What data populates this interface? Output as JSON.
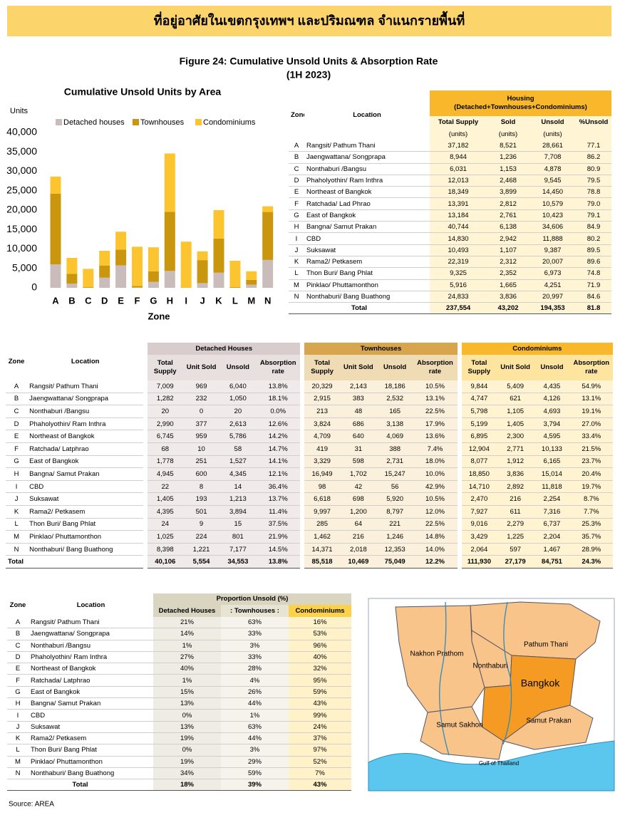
{
  "header": {
    "title": "ที่อยู่อาศัยในเขตกรุงเทพฯ และปริมณฑล จำแนกรายพื้นที่"
  },
  "figure": {
    "title": "Figure 24: Cumulative Unsold Units & Absorption Rate",
    "subtitle": "(1H 2023)"
  },
  "chart_data": {
    "type": "bar",
    "stacked": true,
    "title": "Cumulative Unsold Units by Area",
    "y_label": "Units",
    "x_label": "Zone",
    "categories": [
      "A",
      "B",
      "C",
      "D",
      "E",
      "F",
      "G",
      "H",
      "I",
      "J",
      "K",
      "L",
      "M",
      "N"
    ],
    "series": [
      {
        "name": "Detached houses",
        "color": "#cbbcbc",
        "values": [
          6040,
          1050,
          20,
          2613,
          5786,
          58,
          1527,
          4345,
          14,
          1213,
          3894,
          15,
          801,
          7177
        ]
      },
      {
        "name": "Townhouses",
        "color": "#c9960e",
        "values": [
          18186,
          2532,
          165,
          3138,
          4069,
          388,
          2731,
          15247,
          56,
          5920,
          8797,
          221,
          1246,
          12353
        ]
      },
      {
        "name": "Condominiums",
        "color": "#fcc42e",
        "values": [
          4435,
          4126,
          4693,
          3794,
          4595,
          10133,
          6165,
          15014,
          11818,
          2254,
          7316,
          6737,
          2204,
          1467
        ]
      }
    ],
    "ylim": [
      0,
      40000
    ],
    "yticks": [
      0,
      {
        "value": 5000,
        "label": "5,000"
      },
      {
        "value": 10000,
        "label": "10,000"
      },
      {
        "value": 15000,
        "label": "15,000"
      },
      {
        "value": 20000,
        "label": "20,000"
      },
      {
        "value": 25000,
        "label": "25,000"
      },
      {
        "value": 30000,
        "label": "30,000"
      },
      {
        "value": 35000,
        "label": "35,000"
      },
      {
        "value": 40000,
        "label": "40,000"
      }
    ],
    "grid": false,
    "legend": "top"
  },
  "housing_table": {
    "headers": {
      "zone": "Zone",
      "location": "Location",
      "group": "Housing",
      "group_note": "(Detached+Townhouses+Condominiums)",
      "columns": [
        "Total Supply",
        "Sold",
        "Unsold",
        "%Unsold"
      ],
      "units": [
        "(units)",
        "(units)",
        "(units)"
      ]
    },
    "rows": [
      [
        "A",
        "Rangsit/ Pathum Thani",
        "37,182",
        "8,521",
        "28,661",
        "77.1"
      ],
      [
        "B",
        "Jaengwattana/ Songprapa",
        "8,944",
        "1,236",
        "7,708",
        "86.2"
      ],
      [
        "C",
        "Nonthaburi /Bangsu",
        "6,031",
        "1,153",
        "4,878",
        "80.9"
      ],
      [
        "D",
        "Phaholyothin/ Ram Inthra",
        "12,013",
        "2,468",
        "9,545",
        "79.5"
      ],
      [
        "E",
        "Northeast of Bangkok",
        "18,349",
        "3,899",
        "14,450",
        "78.8"
      ],
      [
        "F",
        "Ratchada/ Lad Phrao",
        "13,391",
        "2,812",
        "10,579",
        "79.0"
      ],
      [
        "G",
        "East of Bangkok",
        "13,184",
        "2,761",
        "10,423",
        "79.1"
      ],
      [
        "H",
        "Bangna/ Samut Prakan",
        "40,744",
        "6,138",
        "34,606",
        "84.9"
      ],
      [
        "I",
        "CBD",
        "14,830",
        "2,942",
        "11,888",
        "80.2"
      ],
      [
        "J",
        "Suksawat",
        "10,493",
        "1,107",
        "9,387",
        "89.5"
      ],
      [
        "K",
        "Rama2/ Petkasem",
        "22,319",
        "2,312",
        "20,007",
        "89.6"
      ],
      [
        "L",
        "Thon Buri/ Bang Phlat",
        "9,325",
        "2,352",
        "6,973",
        "74.8"
      ],
      [
        "M",
        "Pinklao/ Phuttamonthon",
        "5,916",
        "1,665",
        "4,251",
        "71.9"
      ],
      [
        "N",
        "Nonthaburi/  Bang Buathong",
        "24,833",
        "3,836",
        "20,997",
        "84.6"
      ]
    ],
    "total": {
      "label": "Total",
      "values": [
        "237,554",
        "43,202",
        "194,353",
        "81.8"
      ]
    }
  },
  "segment_table": {
    "headers": {
      "zone": "Zone",
      "location": "Location",
      "groups": [
        {
          "name": "Detached Houses",
          "columns": [
            "Total Supply",
            "Unit Sold",
            "Unsold",
            "Absorption rate"
          ]
        },
        {
          "name": "Townhouses",
          "columns": [
            "Total Supply",
            "Unit Sold",
            "Unsold",
            "Absorption rate"
          ]
        },
        {
          "name": "Condominiums",
          "columns": [
            "Total Supply",
            "Unit Sold",
            "Unsold",
            "Absorption rate"
          ]
        }
      ]
    },
    "rows": [
      [
        "A",
        "Rangsit/ Pathum Thani",
        "7,009",
        "969",
        "6,040",
        "13.8%",
        "20,329",
        "2,143",
        "18,186",
        "10.5%",
        "9,844",
        "5,409",
        "4,435",
        "54.9%"
      ],
      [
        "B",
        "Jaengwattana/ Songprapa",
        "1,282",
        "232",
        "1,050",
        "18.1%",
        "2,915",
        "383",
        "2,532",
        "13.1%",
        "4,747",
        "621",
        "4,126",
        "13.1%"
      ],
      [
        "C",
        "Nonthaburi /Bangsu",
        "20",
        "0",
        "20",
        "0.0%",
        "213",
        "48",
        "165",
        "22.5%",
        "5,798",
        "1,105",
        "4,693",
        "19.1%"
      ],
      [
        "D",
        "Phaholyothin/ Ram Inthra",
        "2,990",
        "377",
        "2,613",
        "12.6%",
        "3,824",
        "686",
        "3,138",
        "17.9%",
        "5,199",
        "1,405",
        "3,794",
        "27.0%"
      ],
      [
        "E",
        "Northeast of Bangkok",
        "6,745",
        "959",
        "5,786",
        "14.2%",
        "4,709",
        "640",
        "4,069",
        "13.6%",
        "6,895",
        "2,300",
        "4,595",
        "33.4%"
      ],
      [
        "F",
        "Ratchada/ Latphrao",
        "68",
        "10",
        "58",
        "14.7%",
        "419",
        "31",
        "388",
        "7.4%",
        "12,904",
        "2,771",
        "10,133",
        "21.5%"
      ],
      [
        "G",
        "East of Bangkok",
        "1,778",
        "251",
        "1,527",
        "14.1%",
        "3,329",
        "598",
        "2,731",
        "18.0%",
        "8,077",
        "1,912",
        "6,165",
        "23.7%"
      ],
      [
        "H",
        "Bangna/ Samut Prakan",
        "4,945",
        "600",
        "4,345",
        "12.1%",
        "16,949",
        "1,702",
        "15,247",
        "10.0%",
        "18,850",
        "3,836",
        "15,014",
        "20.4%"
      ],
      [
        "I",
        "CBD",
        "22",
        "8",
        "14",
        "36.4%",
        "98",
        "42",
        "56",
        "42.9%",
        "14,710",
        "2,892",
        "11,818",
        "19.7%"
      ],
      [
        "J",
        "Suksawat",
        "1,405",
        "193",
        "1,213",
        "13.7%",
        "6,618",
        "698",
        "5,920",
        "10.5%",
        "2,470",
        "216",
        "2,254",
        "8.7%"
      ],
      [
        "K",
        "Rama2/ Petkasem",
        "4,395",
        "501",
        "3,894",
        "11.4%",
        "9,997",
        "1,200",
        "8,797",
        "12.0%",
        "7,927",
        "611",
        "7,316",
        "7.7%"
      ],
      [
        "L",
        "Thon Buri/ Bang Phlat",
        "24",
        "9",
        "15",
        "37.5%",
        "285",
        "64",
        "221",
        "22.5%",
        "9,016",
        "2,279",
        "6,737",
        "25.3%"
      ],
      [
        "M",
        "Pinklao/ Phuttamonthon",
        "1,025",
        "224",
        "801",
        "21.9%",
        "1,462",
        "216",
        "1,246",
        "14.8%",
        "3,429",
        "1,225",
        "2,204",
        "35.7%"
      ],
      [
        "N",
        "Nonthaburi/  Bang Buathong",
        "8,398",
        "1,221",
        "7,177",
        "14.5%",
        "14,371",
        "2,018",
        "12,353",
        "14.0%",
        "2,064",
        "597",
        "1,467",
        "28.9%"
      ]
    ],
    "total": {
      "label": "Total",
      "values": [
        "40,106",
        "5,554",
        "34,553",
        "13.8%",
        "85,518",
        "10,469",
        "75,049",
        "12.2%",
        "111,930",
        "27,179",
        "84,751",
        "24.3%"
      ]
    }
  },
  "proportion_table": {
    "headers": {
      "zone": "Zone",
      "location": "Location",
      "group": "Proportion Unsold (%)",
      "columns": [
        "Detached Houses",
        ": Townhouses :",
        "Condominiums"
      ]
    },
    "rows": [
      [
        "A",
        "Rangsit/ Pathum Thani",
        "21%",
        "63%",
        "16%"
      ],
      [
        "B",
        "Jaengwattana/ Songprapa",
        "14%",
        "33%",
        "53%"
      ],
      [
        "C",
        "Nonthaburi /Bangsu",
        "1%",
        "3%",
        "96%"
      ],
      [
        "D",
        "Phaholyothin/ Ram Inthra",
        "27%",
        "33%",
        "40%"
      ],
      [
        "E",
        "Northeast of Bangkok",
        "40%",
        "28%",
        "32%"
      ],
      [
        "F",
        "Ratchada/ Latphrao",
        "1%",
        "4%",
        "95%"
      ],
      [
        "G",
        "East of Bangkok",
        "15%",
        "26%",
        "59%"
      ],
      [
        "H",
        "Bangna/ Samut Prakan",
        "13%",
        "44%",
        "43%"
      ],
      [
        "I",
        "CBD",
        "0%",
        "1%",
        "99%"
      ],
      [
        "J",
        "Suksawat",
        "13%",
        "63%",
        "24%"
      ],
      [
        "K",
        "Rama2/ Petkasem",
        "19%",
        "44%",
        "37%"
      ],
      [
        "L",
        "Thon Buri/ Bang Phlat",
        "0%",
        "3%",
        "97%"
      ],
      [
        "M",
        "Pinklao/ Phuttamonthon",
        "19%",
        "29%",
        "52%"
      ],
      [
        "N",
        "Nonthaburi/  Bang Buathong",
        "34%",
        "59%",
        "7%"
      ]
    ],
    "total": {
      "label": "Total",
      "values": [
        "18%",
        "39%",
        "43%"
      ]
    }
  },
  "map": {
    "labels": [
      "Nakhon Prathom",
      "Pathum Thani",
      "Nonthaburi",
      "Bangkok",
      "Samut Sakhon",
      "Samut Prakan",
      "Gulf of Thailand"
    ]
  },
  "source": "Source: AREA"
}
